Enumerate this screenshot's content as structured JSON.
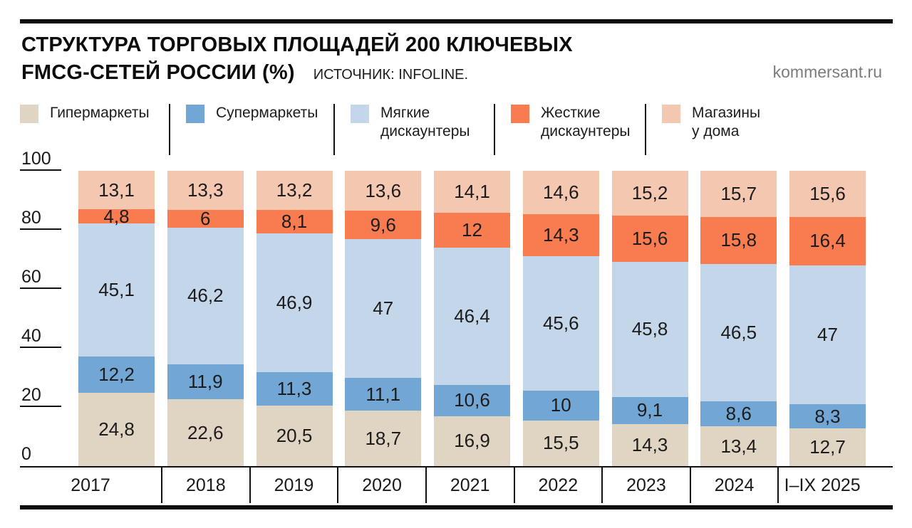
{
  "header": {
    "title_line1": "СТРУКТУРА ТОРГОВЫХ ПЛОЩАДЕЙ 200 КЛЮЧЕВЫХ",
    "title_line2": "FMCG-СЕТЕЙ РОССИИ (%)",
    "source": "ИСТОЧНИК: INFOLINE.",
    "watermark": "kommersant.ru"
  },
  "legend": [
    {
      "lines": [
        "Гипермаркеты"
      ],
      "color": "#e0d5c2"
    },
    {
      "lines": [
        "Супермаркеты"
      ],
      "color": "#72a7d5"
    },
    {
      "lines": [
        "Мягкие",
        "дискаунтеры"
      ],
      "color": "#c4d6ea"
    },
    {
      "lines": [
        "Жесткие",
        "дискаунтеры"
      ],
      "color": "#f87c50"
    },
    {
      "lines": [
        "Магазины",
        "у дома"
      ],
      "color": "#f4c7b1"
    }
  ],
  "chart_data": {
    "type": "bar",
    "stacked": true,
    "title": "СТРУКТУРА ТОРГОВЫХ ПЛОЩАДЕЙ 200 КЛЮЧЕВЫХ FMCG-СЕТЕЙ РОССИИ (%)",
    "source": "ИСТОЧНИК: INFOLINE.",
    "categories": [
      "2017",
      "2018",
      "2019",
      "2020",
      "2021",
      "2022",
      "2023",
      "2024",
      "I–IX 2025"
    ],
    "series": [
      {
        "name": "Гипермаркеты",
        "color": "#e0d5c2",
        "values": [
          24.8,
          22.6,
          20.5,
          18.7,
          16.9,
          15.5,
          14.3,
          13.4,
          12.7
        ]
      },
      {
        "name": "Супермаркеты",
        "color": "#72a7d5",
        "values": [
          12.2,
          11.9,
          11.3,
          11.1,
          10.6,
          10,
          9.1,
          8.6,
          8.3
        ]
      },
      {
        "name": "Мягкие дискаунтеры",
        "color": "#c4d6ea",
        "values": [
          45.1,
          46.2,
          46.9,
          47,
          46.4,
          45.6,
          45.8,
          46.5,
          47
        ]
      },
      {
        "name": "Жесткие дискаунтеры",
        "color": "#f87c50",
        "values": [
          4.8,
          6,
          8.1,
          9.6,
          12,
          14.3,
          15.6,
          15.8,
          16.4
        ]
      },
      {
        "name": "Магазины у дома",
        "color": "#f4c7b1",
        "values": [
          13.1,
          13.3,
          13.2,
          13.6,
          14.1,
          14.6,
          15.2,
          15.7,
          15.6
        ]
      }
    ],
    "series_order": "bottom-to-top",
    "yticks": [
      0,
      20,
      40,
      60,
      80,
      100
    ],
    "ylim": [
      0,
      100
    ],
    "grid": false,
    "legend_position": "top",
    "value_labels": "inside, decimal comma"
  }
}
